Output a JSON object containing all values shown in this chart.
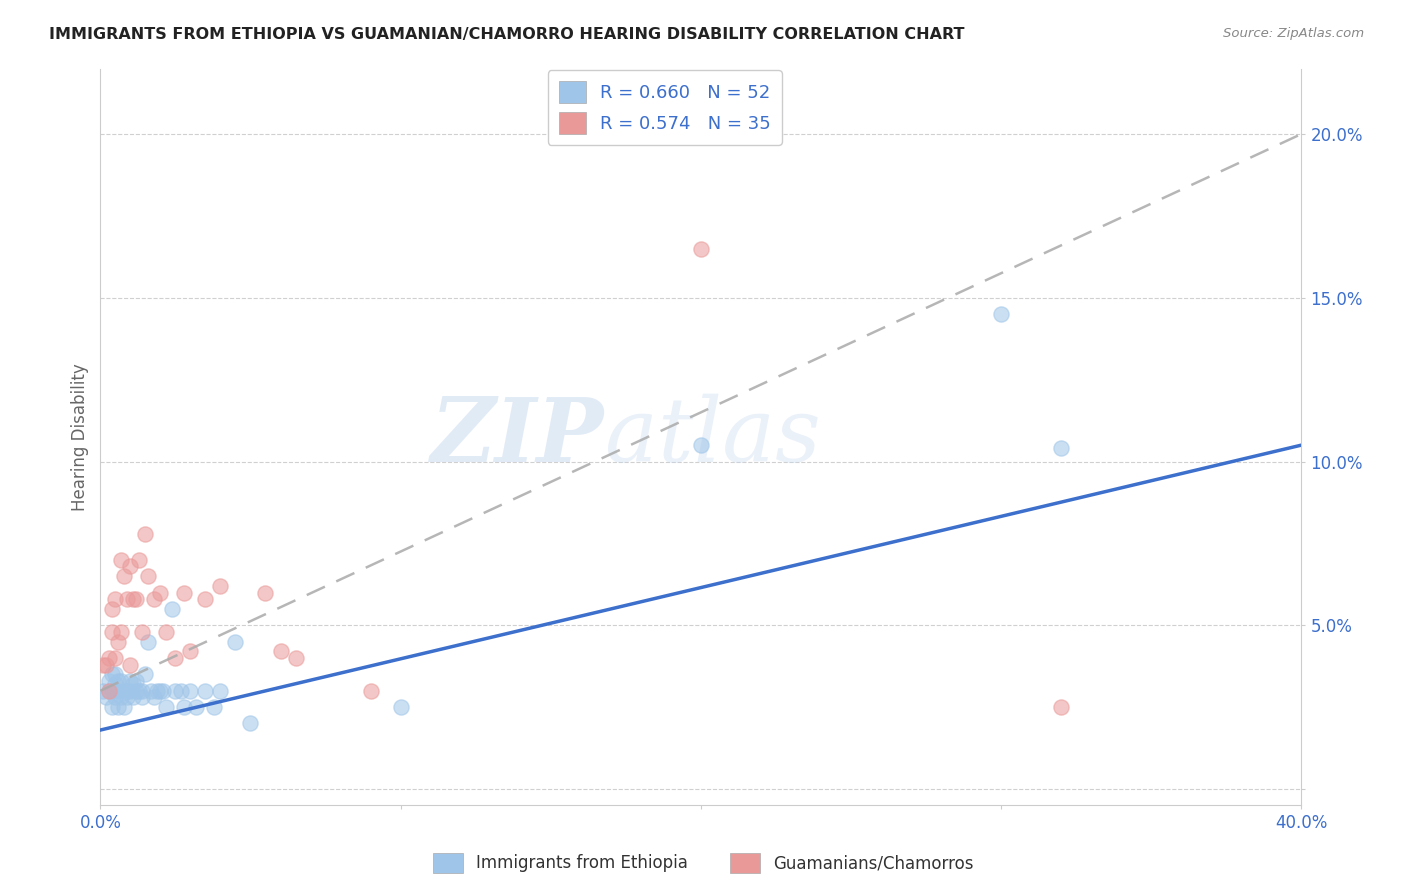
{
  "title": "IMMIGRANTS FROM ETHIOPIA VS GUAMANIAN/CHAMORRO HEARING DISABILITY CORRELATION CHART",
  "source": "Source: ZipAtlas.com",
  "ylabel": "Hearing Disability",
  "xlim": [
    0.0,
    0.4
  ],
  "ylim": [
    -0.005,
    0.22
  ],
  "x_ticks": [
    0.0,
    0.1,
    0.2,
    0.3,
    0.4
  ],
  "x_tick_labels": [
    "0.0%",
    "",
    "",
    "",
    "40.0%"
  ],
  "y_ticks": [
    0.0,
    0.05,
    0.1,
    0.15,
    0.2
  ],
  "y_tick_labels_right": [
    "",
    "5.0%",
    "10.0%",
    "15.0%",
    "20.0%"
  ],
  "blue_color": "#9fc5e8",
  "pink_color": "#ea9999",
  "blue_line_color": "#3d6fcc",
  "pink_line_color": "#aaaaaa",
  "blue_r": 0.66,
  "blue_n": 52,
  "pink_r": 0.574,
  "pink_n": 35,
  "legend_label_blue": "Immigrants from Ethiopia",
  "legend_label_pink": "Guamanians/Chamorros",
  "watermark_zip": "ZIP",
  "watermark_atlas": "atlas",
  "blue_scatter_x": [
    0.001,
    0.002,
    0.003,
    0.003,
    0.004,
    0.004,
    0.004,
    0.005,
    0.005,
    0.005,
    0.005,
    0.006,
    0.006,
    0.006,
    0.007,
    0.007,
    0.008,
    0.008,
    0.009,
    0.009,
    0.01,
    0.01,
    0.011,
    0.011,
    0.012,
    0.012,
    0.013,
    0.014,
    0.014,
    0.015,
    0.016,
    0.017,
    0.018,
    0.019,
    0.02,
    0.021,
    0.022,
    0.024,
    0.025,
    0.027,
    0.028,
    0.03,
    0.032,
    0.035,
    0.038,
    0.04,
    0.045,
    0.05,
    0.1,
    0.2,
    0.3,
    0.32
  ],
  "blue_scatter_y": [
    0.03,
    0.028,
    0.033,
    0.03,
    0.025,
    0.03,
    0.035,
    0.028,
    0.03,
    0.032,
    0.035,
    0.025,
    0.03,
    0.033,
    0.028,
    0.033,
    0.025,
    0.03,
    0.03,
    0.028,
    0.03,
    0.033,
    0.028,
    0.032,
    0.03,
    0.033,
    0.03,
    0.03,
    0.028,
    0.035,
    0.045,
    0.03,
    0.028,
    0.03,
    0.03,
    0.03,
    0.025,
    0.055,
    0.03,
    0.03,
    0.025,
    0.03,
    0.025,
    0.03,
    0.025,
    0.03,
    0.045,
    0.02,
    0.025,
    0.105,
    0.145,
    0.104
  ],
  "pink_scatter_x": [
    0.001,
    0.002,
    0.003,
    0.003,
    0.004,
    0.004,
    0.005,
    0.005,
    0.006,
    0.007,
    0.007,
    0.008,
    0.009,
    0.01,
    0.01,
    0.011,
    0.012,
    0.013,
    0.014,
    0.015,
    0.016,
    0.018,
    0.02,
    0.022,
    0.025,
    0.028,
    0.03,
    0.035,
    0.04,
    0.055,
    0.06,
    0.065,
    0.09,
    0.2,
    0.32
  ],
  "pink_scatter_y": [
    0.038,
    0.038,
    0.04,
    0.03,
    0.055,
    0.048,
    0.04,
    0.058,
    0.045,
    0.048,
    0.07,
    0.065,
    0.058,
    0.038,
    0.068,
    0.058,
    0.058,
    0.07,
    0.048,
    0.078,
    0.065,
    0.058,
    0.06,
    0.048,
    0.04,
    0.06,
    0.042,
    0.058,
    0.062,
    0.06,
    0.042,
    0.04,
    0.03,
    0.165,
    0.025
  ]
}
